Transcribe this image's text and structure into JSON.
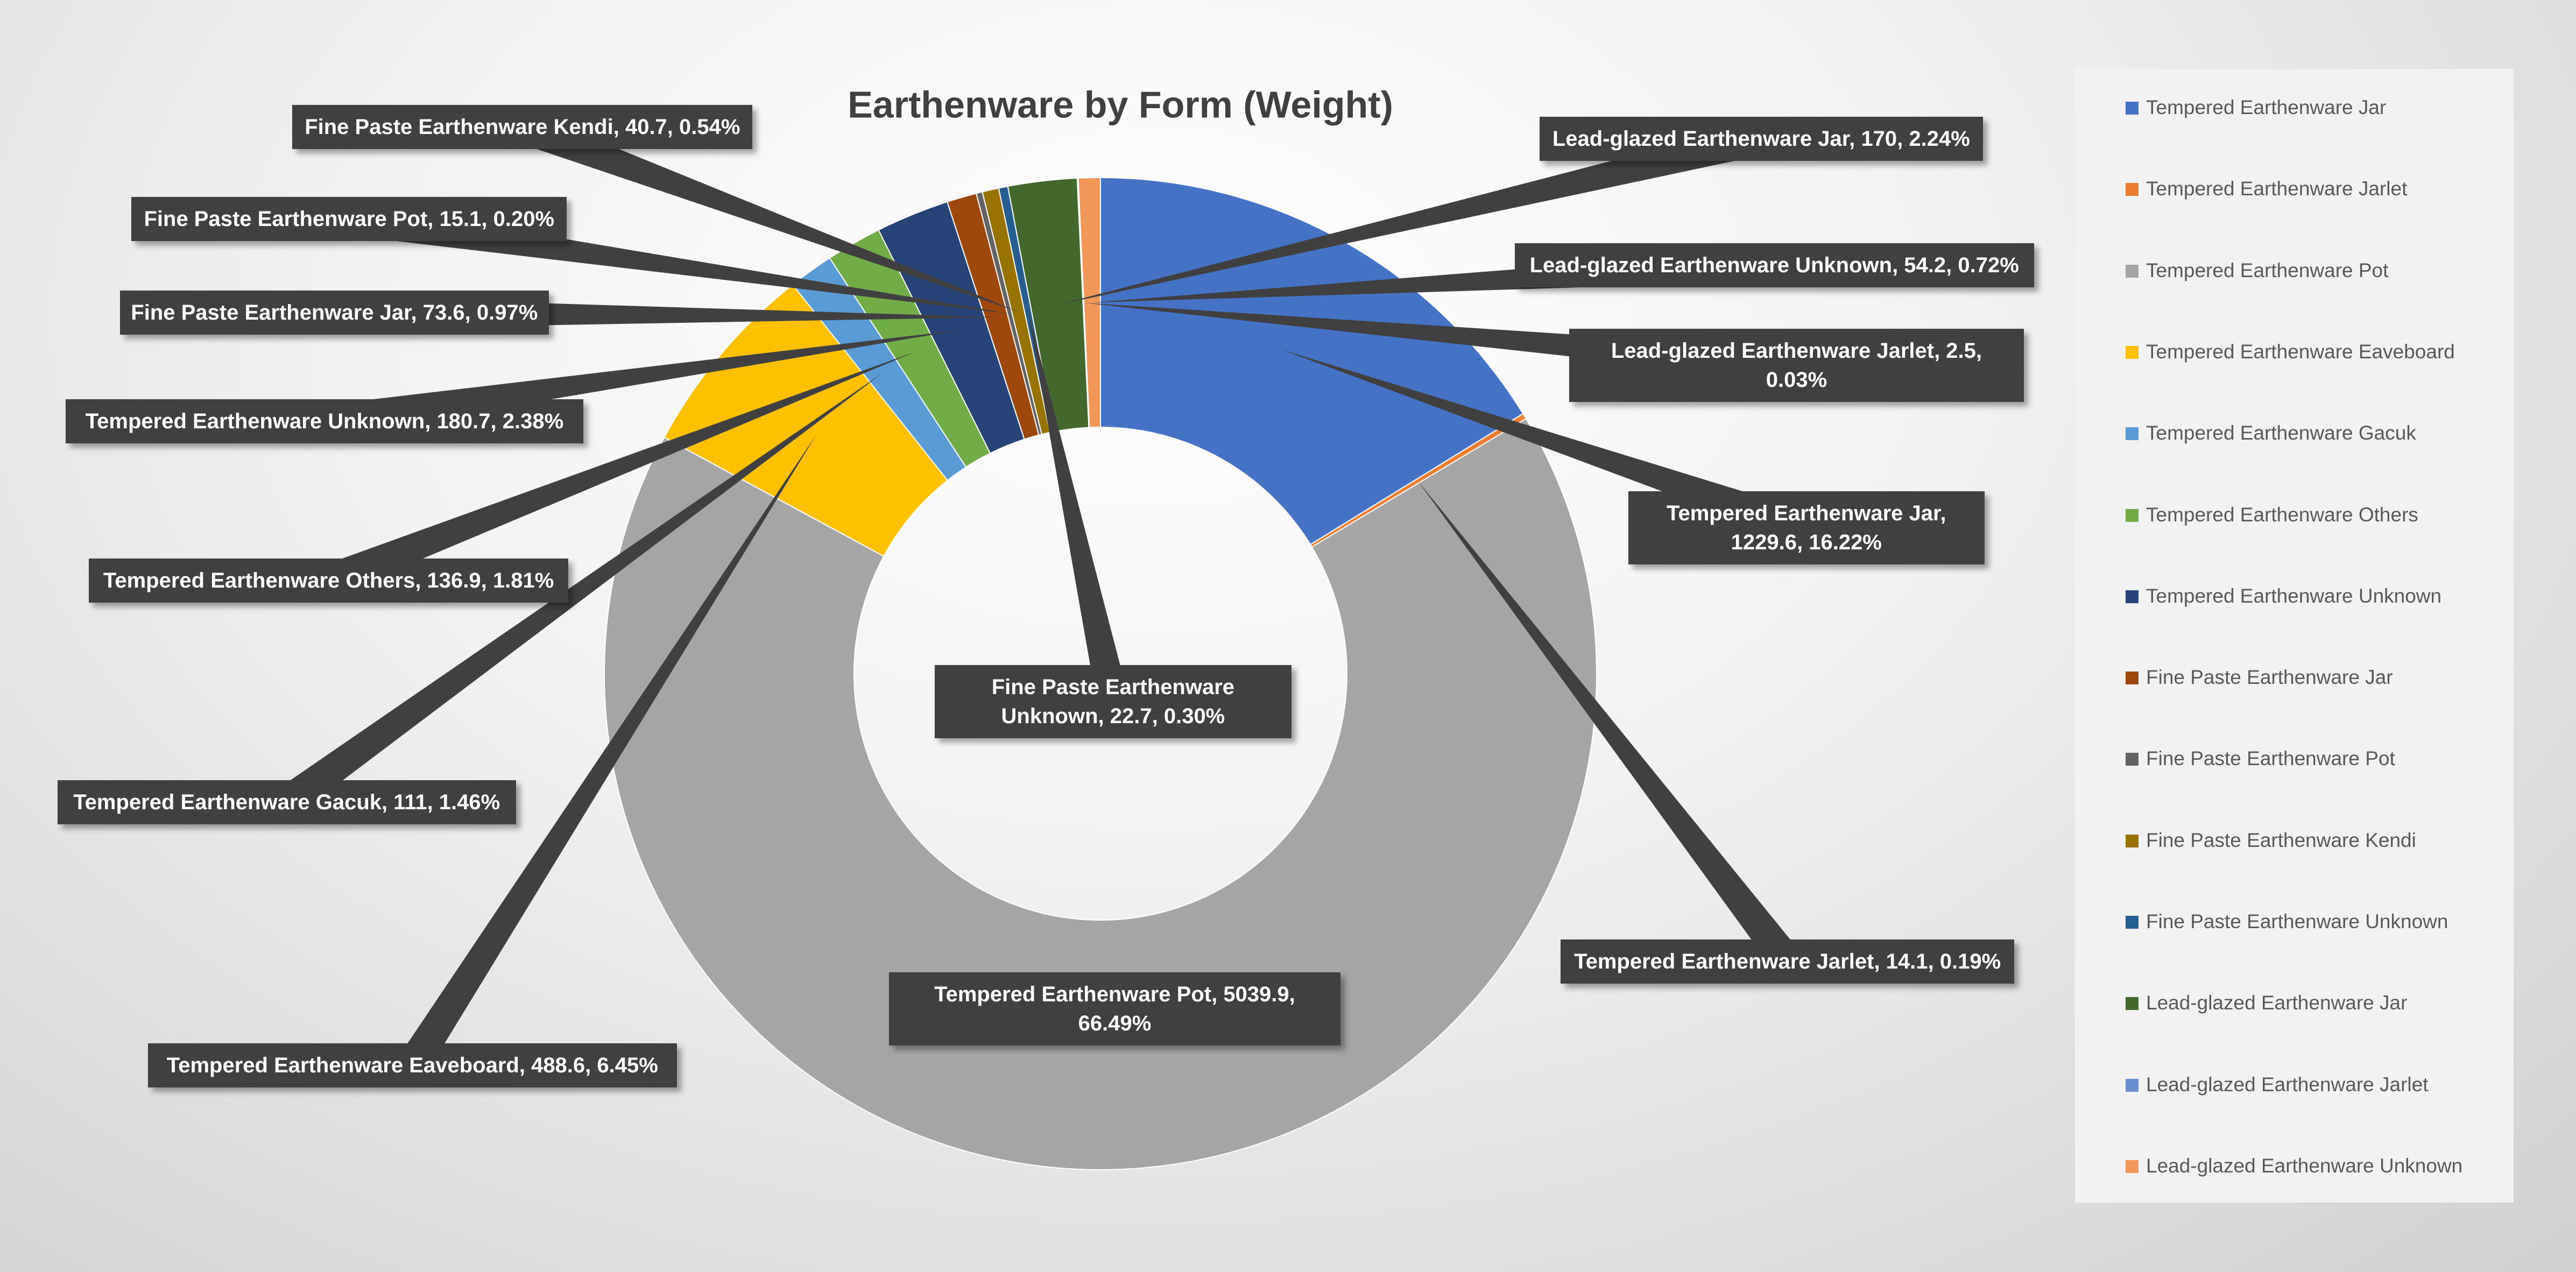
{
  "chart_data": {
    "type": "donut",
    "title": "Earthenware by Form (Weight)",
    "categories": [
      "Tempered Earthenware Jar",
      "Tempered Earthenware Jarlet",
      "Tempered Earthenware Pot",
      "Tempered Earthenware Eaveboard",
      "Tempered Earthenware Gacuk",
      "Tempered Earthenware Others",
      "Tempered Earthenware Unknown",
      "Fine Paste Earthenware Jar",
      "Fine Paste Earthenware Pot",
      "Fine Paste Earthenware Kendi",
      "Fine Paste Earthenware Unknown",
      "Lead-glazed Earthenware Jar",
      "Lead-glazed Earthenware Jarlet",
      "Lead-glazed Earthenware Unknown"
    ],
    "values": [
      1229.6,
      14.1,
      5039.9,
      488.6,
      111,
      136.9,
      180.7,
      73.6,
      15.1,
      40.7,
      22.7,
      170,
      2.5,
      54.2
    ],
    "value_labels": [
      "Tempered Earthenware Jar, 1229.6, 16.22%",
      "Tempered Earthenware Jarlet, 14.1, 0.19%",
      "Tempered Earthenware Pot, 5039.9, 66.49%",
      "Tempered Earthenware Eaveboard, 488.6, 6.45%",
      "Tempered Earthenware Gacuk, 111, 1.46%",
      "Tempered Earthenware Others, 136.9, 1.81%",
      "Tempered Earthenware Unknown, 180.7, 2.38%",
      "Fine Paste Earthenware Jar, 73.6, 0.97%",
      "Fine Paste Earthenware Pot, 15.1, 0.20%",
      "Fine Paste Earthenware Kendi, 40.7, 0.54%",
      "Fine Paste Earthenware Unknown, 22.7, 0.30%",
      "Lead-glazed Earthenware Jar, 170, 2.24%",
      "Lead-glazed Earthenware Jarlet, 2.5, 0.03%",
      "Lead-glazed Earthenware Unknown, 54.2, 0.72%"
    ],
    "colors": [
      "#4472C4",
      "#ED7D31",
      "#A5A5A5",
      "#FFC000",
      "#5B9BD5",
      "#70AD47",
      "#264478",
      "#9E480E",
      "#636363",
      "#997300",
      "#255E91",
      "#43682B",
      "#698ED0",
      "#F1975A"
    ],
    "legend": "right"
  }
}
